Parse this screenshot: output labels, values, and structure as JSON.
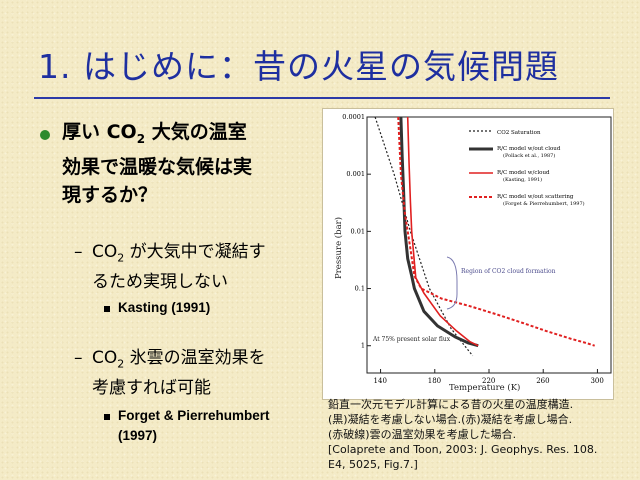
{
  "slide": {
    "title": "1. はじめに：昔の火星の気候問題",
    "main_bullet": {
      "lines": [
        "厚い CO",
        "大気の温室",
        "効果で温暖な気候は実",
        "現するか？"
      ],
      "sub": "2"
    },
    "sub_bullets": [
      {
        "line1_pre": "CO",
        "line1_sub": "2",
        "line1_post": " が大気中で凝結す",
        "line2": "るため実現しない",
        "ref": "Kasting (1991)"
      },
      {
        "line1_pre": "CO",
        "line1_sub": "2",
        "line1_post": " 氷雲の温室効果を",
        "line2": "考慮すれば可能",
        "ref_line1": "Forget & Pierrehumbert",
        "ref_line2": "(1997)"
      }
    ],
    "caption": [
      "鉛直一次元モデル計算による昔の火星の温度構造.",
      "(黒)凝結を考慮しない場合.(赤)凝結を考慮し場合.",
      "(赤破線)雲の温室効果を考慮した場合.",
      "[Colaprete and Toon, 2003: J. Geophys. Res. 108.",
      "E4, 5025, Fig.7.]"
    ]
  },
  "chart_data": {
    "type": "line",
    "xlabel": "Temperature (K)",
    "ylabel": "Pressure (bar)",
    "xlim": [
      130,
      310
    ],
    "ylim": [
      3,
      0.0001
    ],
    "yscale": "log",
    "x_ticks": [
      "140",
      "180",
      "220",
      "260",
      "300"
    ],
    "x_tick_values": [
      140,
      180,
      220,
      260,
      300
    ],
    "y_ticks": [
      "0.0001",
      "0.001",
      "0.01",
      "0.1",
      "1"
    ],
    "y_tick_values": [
      0.0001,
      0.001,
      0.01,
      0.1,
      1
    ],
    "legend": [
      {
        "label": "CO2 Saturation",
        "color": "#222222",
        "style": "dotted"
      },
      {
        "label": "R/C model w/out cloud",
        "note": "(Pollack et al., 1987)",
        "color": "#222222",
        "style": "solid-thick"
      },
      {
        "label": "R/C model w/cloud",
        "note": "(Kasting, 1991)",
        "color": "#e02020",
        "style": "solid"
      },
      {
        "label": "R/C model w/out scattering",
        "note": "(Forget & Pierrehumbert, 1997)",
        "color": "#e02020",
        "style": "dotted"
      }
    ],
    "annotations": [
      "Region of CO2 cloud formation",
      "At 75% present solar flux"
    ],
    "series": [
      {
        "key": "saturation",
        "color": "#222222",
        "dash": "2,2",
        "width": 1.2,
        "points": [
          [
            136,
            0.0001
          ],
          [
            150,
            0.001
          ],
          [
            162,
            0.01
          ],
          [
            176,
            0.1
          ],
          [
            192,
            0.5
          ],
          [
            202,
            1.0
          ],
          [
            208,
            1.5
          ]
        ]
      },
      {
        "key": "nocloud",
        "color": "#333333",
        "dash": "",
        "width": 3,
        "points": [
          [
            155,
            0.0001
          ],
          [
            156,
            0.0005
          ],
          [
            157,
            0.002
          ],
          [
            158,
            0.01
          ],
          [
            160,
            0.03
          ],
          [
            163,
            0.06
          ],
          [
            165,
            0.1
          ],
          [
            172,
            0.25
          ],
          [
            182,
            0.45
          ],
          [
            195,
            0.7
          ],
          [
            205,
            0.9
          ],
          [
            212,
            1.0
          ]
        ]
      },
      {
        "key": "withcloud",
        "color": "#e02020",
        "dash": "",
        "width": 1.6,
        "points": [
          [
            160,
            0.0001
          ],
          [
            161,
            0.0006
          ],
          [
            162,
            0.003
          ],
          [
            163,
            0.01
          ],
          [
            165,
            0.035
          ],
          [
            166,
            0.065
          ],
          [
            172,
            0.12
          ],
          [
            184,
            0.3
          ],
          [
            196,
            0.55
          ],
          [
            206,
            0.85
          ],
          [
            212,
            1.0
          ]
        ]
      },
      {
        "key": "noscatter",
        "color": "#e02020",
        "dash": "3,2",
        "width": 2,
        "points": [
          [
            153,
            0.0001
          ],
          [
            155,
            0.001
          ],
          [
            158,
            0.005
          ],
          [
            162,
            0.02
          ],
          [
            165,
            0.06
          ],
          [
            170,
            0.1
          ],
          [
            185,
            0.15
          ],
          [
            205,
            0.2
          ],
          [
            225,
            0.28
          ],
          [
            245,
            0.4
          ],
          [
            262,
            0.55
          ],
          [
            280,
            0.75
          ],
          [
            292,
            0.9
          ],
          [
            298,
            1.0
          ]
        ]
      }
    ]
  }
}
